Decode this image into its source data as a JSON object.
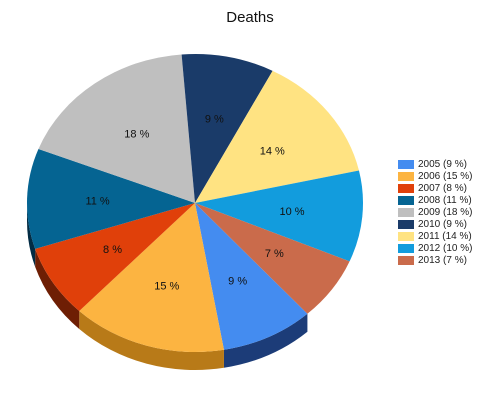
{
  "chart_data": {
    "type": "pie",
    "title": "Deaths",
    "legend_position": "right",
    "slices": [
      {
        "name": "2005",
        "legend": "2005 (9 %)",
        "label": "9 %",
        "value": 9,
        "color": "#448cf0",
        "side": "#1c3c78"
      },
      {
        "name": "2006",
        "legend": "2006 (15 %)",
        "label": "15 %",
        "value": 15,
        "color": "#fcb441",
        "side": "#b87a18"
      },
      {
        "name": "2007",
        "legend": "2007 (8 %)",
        "label": "8 %",
        "value": 8,
        "color": "#e0400a",
        "side": "#6e1e04"
      },
      {
        "name": "2008",
        "legend": "2008 (11 %)",
        "label": "11 %",
        "value": 11,
        "color": "#056492",
        "side": "#022c44"
      },
      {
        "name": "2009",
        "legend": "2009 (18 %)",
        "label": "18 %",
        "value": 18,
        "color": "#bfbfbf",
        "side": "#6c6c6c"
      },
      {
        "name": "2010",
        "legend": "2010 (9 %)",
        "label": "9 %",
        "value": 9,
        "color": "#1a3b69",
        "side": "#0d1c34"
      },
      {
        "name": "2011",
        "legend": "2011 (14 %)",
        "label": "14 %",
        "value": 14,
        "color": "#ffe382",
        "side": "#a8913c"
      },
      {
        "name": "2012",
        "legend": "2012 (10 %)",
        "label": "10 %",
        "value": 10,
        "color": "#129cdd",
        "side": "#0a4e70"
      },
      {
        "name": "2013",
        "legend": "2013 (7 %)",
        "label": "7 %",
        "value": 7,
        "color": "#ca6b4b",
        "side": "#6b3422"
      }
    ]
  }
}
